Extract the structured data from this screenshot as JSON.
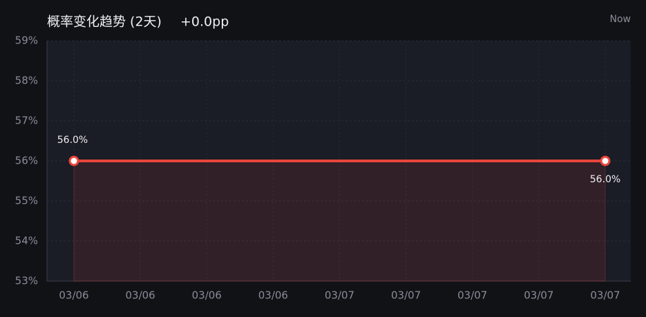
{
  "chart_data": {
    "type": "line",
    "title": "概率变化趋势 (2天)",
    "change": "+0.0pp",
    "now_label": "Now",
    "x_tick_labels": [
      "03/06",
      "03/06",
      "03/06",
      "03/06",
      "03/07",
      "03/07",
      "03/07",
      "03/07",
      "03/07"
    ],
    "series": [
      {
        "color": "#e8453c",
        "values": [
          56,
          56
        ],
        "value_labels": [
          "56.0%",
          "56.0%"
        ]
      }
    ],
    "ylim": [
      53,
      59
    ],
    "yticks": [
      {
        "value": 53,
        "label": "53%"
      },
      {
        "value": 54,
        "label": "54%"
      },
      {
        "value": 55,
        "label": "55%"
      },
      {
        "value": 56,
        "label": "56%"
      },
      {
        "value": 57,
        "label": "57%"
      },
      {
        "value": 58,
        "label": "58%"
      },
      {
        "value": 59,
        "label": "59%"
      }
    ],
    "grid": true,
    "area": true
  }
}
